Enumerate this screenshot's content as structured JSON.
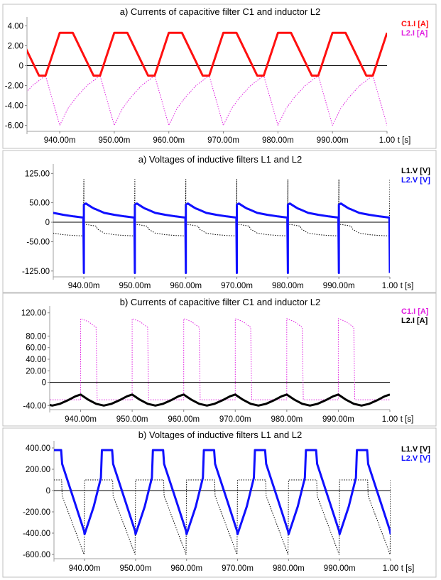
{
  "chart_data": [
    {
      "type": "line",
      "title": "a) Currents of capacitive filter C1 and inductor L2",
      "xlabel": "t [s]",
      "xlim": [
        934,
        1000
      ],
      "ylim": [
        -6.6,
        4.6
      ],
      "xticks": [
        940,
        950,
        960,
        970,
        980,
        990,
        1000
      ],
      "xtick_labels": [
        "940.00m",
        "950.00m",
        "960.00m",
        "970.00m",
        "980.00m",
        "990.00m",
        "1.00"
      ],
      "yticks": [
        4,
        2,
        0,
        -2,
        -4,
        -6
      ],
      "ytick_labels": [
        "4.00",
        "2.00",
        "0",
        "-2.00",
        "-4.00",
        "-6.00"
      ],
      "period": 10,
      "series": [
        {
          "name": "C1.I [A]",
          "color": "#ff1010",
          "style": "solid",
          "x": [
            0,
            2.4,
            6.2,
            7.4,
            10
          ],
          "y": [
            3.3,
            3.3,
            -1.0,
            -1.0,
            3.3
          ]
        },
        {
          "name": "L2.I [A]",
          "color": "#e020e0",
          "style": "dotted",
          "x": [
            0,
            1.5,
            3.0,
            5.0,
            7.4,
            10
          ],
          "y": [
            -6.0,
            -4.3,
            -3.2,
            -2.0,
            -1.0,
            -6.0
          ]
        }
      ]
    },
    {
      "type": "line",
      "title": "a) Voltages of inductive filters L1 and L2",
      "xlabel": "t [s]",
      "xlim": [
        934,
        1000
      ],
      "ylim": [
        -140,
        142
      ],
      "xticks": [
        940,
        950,
        960,
        970,
        980,
        990,
        1000
      ],
      "xtick_labels": [
        "940.00m",
        "950.00m",
        "960.00m",
        "970.00m",
        "980.00m",
        "990.00m",
        "1.00"
      ],
      "yticks": [
        125,
        50,
        0,
        -50,
        -125
      ],
      "ytick_labels": [
        "125.00",
        "50.00",
        "0",
        "-50.00",
        "-125.00"
      ],
      "period": 10,
      "series": [
        {
          "name": "L1.V [V]",
          "color": "#000000",
          "style": "dotted",
          "x": [
            0,
            0.1,
            2.4,
            2.7,
            4.0,
            6.0,
            8.0,
            9.9,
            10
          ],
          "y": [
            0,
            -5,
            -10,
            -18,
            -28,
            -32,
            -34,
            -35,
            110
          ]
        },
        {
          "name": "L2.V [V]",
          "color": "#1010ff",
          "style": "solid",
          "x": [
            0,
            0.4,
            1.6,
            2.0,
            2.4,
            4.0,
            6.0,
            8.0,
            9.9,
            10
          ],
          "y": [
            45,
            48,
            38,
            35,
            33,
            24,
            19,
            15,
            12,
            -130
          ]
        }
      ]
    },
    {
      "type": "line",
      "title": "b) Currents of capacitive filter C1 and inductor L2",
      "xlabel": "t [s]",
      "xlim": [
        934,
        1000
      ],
      "ylim": [
        -47,
        127
      ],
      "xticks": [
        940,
        950,
        960,
        970,
        980,
        990,
        1000
      ],
      "xtick_labels": [
        "940.00m",
        "950.00m",
        "960.00m",
        "970.00m",
        "980.00m",
        "990.00m",
        "1.00"
      ],
      "yticks": [
        120,
        80,
        60,
        40,
        20,
        0,
        -40
      ],
      "ytick_labels": [
        "120.00",
        "80.00",
        "60.00",
        "40.00",
        "20.00",
        "0",
        "-40.00"
      ],
      "period": 10,
      "series": [
        {
          "name": "C1.I [A]",
          "color": "#e020e0",
          "style": "dotted",
          "x": [
            0,
            1.5,
            3.0,
            3.2,
            5.5,
            8.0,
            10
          ],
          "y": [
            110,
            105,
            95,
            -30,
            -30,
            -30,
            -30
          ]
        },
        {
          "name": "L2.I [A]",
          "color": "#000000",
          "style": "solid",
          "x": [
            0,
            0.5,
            1.5,
            3.0,
            4.5,
            6.0,
            7.5,
            9.0,
            10
          ],
          "y": [
            -21,
            -24,
            -30,
            -37,
            -40,
            -37,
            -31,
            -24,
            -21
          ]
        }
      ]
    },
    {
      "type": "line",
      "title": "b) Voltages of inductive filters L1 and L2",
      "xlabel": "t [s]",
      "xlim": [
        934,
        1000
      ],
      "ylim": [
        -640,
        440
      ],
      "xticks": [
        940,
        950,
        960,
        970,
        980,
        990,
        1000
      ],
      "xtick_labels": [
        "940.00m",
        "950.00m",
        "960.00m",
        "970.00m",
        "980.00m",
        "990.00m",
        "1.00"
      ],
      "yticks": [
        400,
        200,
        0,
        -200,
        -400,
        -600
      ],
      "ytick_labels": [
        "400.00",
        "200.00",
        "0",
        "-200.00",
        "-400.00",
        "-600.00"
      ],
      "period": 10,
      "series": [
        {
          "name": "L1.V [V]",
          "color": "#000000",
          "style": "dotted",
          "x": [
            0,
            5.5,
            5.6,
            9.9,
            10
          ],
          "y": [
            100,
            100,
            -50,
            -600,
            100
          ]
        },
        {
          "name": "L2.V [V]",
          "color": "#1010ff",
          "style": "solid",
          "x": [
            0,
            1.8,
            3.2,
            3.4,
            5.4,
            5.6,
            8.0,
            9.9,
            10
          ],
          "y": [
            -410,
            -150,
            120,
            380,
            380,
            250,
            -100,
            -380,
            -410
          ]
        }
      ]
    }
  ]
}
